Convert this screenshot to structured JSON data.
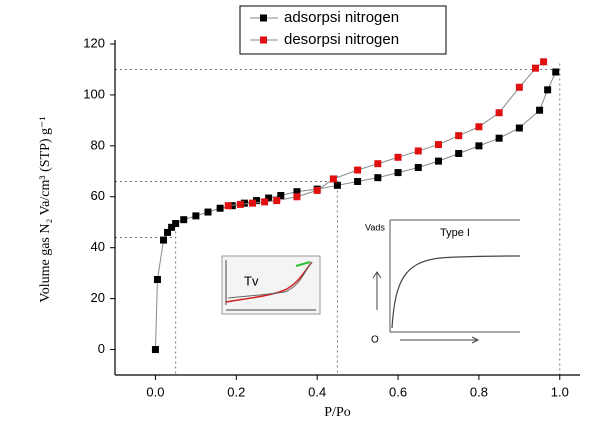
{
  "chart_data": {
    "type": "scatter-line",
    "x_label": "P/Po",
    "y_label": "Volume gas N₂ Va/cm³ (STP) g⁻¹",
    "xlim": [
      -0.1,
      1.05
    ],
    "ylim": [
      -10,
      120
    ],
    "xticks": [
      {
        "value": 0,
        "label": "0.0"
      },
      0.2,
      0.4,
      0.6,
      0.8,
      {
        "value": 1,
        "label": "1.0"
      }
    ],
    "yticks": [
      0,
      20,
      40,
      60,
      80,
      100,
      120
    ],
    "legend": "top",
    "series": [
      {
        "name": "adsorpsi nitrogen",
        "color": "#000000",
        "x": [
          0.0,
          0.005,
          0.02,
          0.03,
          0.04,
          0.05,
          0.07,
          0.1,
          0.13,
          0.16,
          0.19,
          0.22,
          0.25,
          0.28,
          0.31,
          0.35,
          0.4,
          0.45,
          0.5,
          0.55,
          0.6,
          0.65,
          0.7,
          0.75,
          0.8,
          0.85,
          0.9,
          0.95,
          0.97,
          0.99
        ],
        "values": [
          0,
          27.5,
          43,
          46,
          48,
          49.5,
          51,
          52.5,
          54,
          55.5,
          56.5,
          57.5,
          58.5,
          59.5,
          60.5,
          62,
          63,
          64.5,
          66,
          67.5,
          69.5,
          71.5,
          74,
          77,
          80,
          83,
          87,
          94,
          102,
          109
        ]
      },
      {
        "name": "desorpsi nitrogen",
        "color": "#e01010",
        "x": [
          0.96,
          0.94,
          0.9,
          0.85,
          0.8,
          0.75,
          0.7,
          0.65,
          0.6,
          0.55,
          0.5,
          0.44,
          0.4,
          0.35,
          0.3,
          0.27,
          0.24,
          0.21,
          0.18
        ],
        "values": [
          113,
          110.5,
          103,
          93,
          87.5,
          84,
          80.5,
          78,
          75.5,
          73,
          70.5,
          67,
          62.5,
          60,
          58.5,
          58,
          57.5,
          57,
          56.5
        ]
      }
    ],
    "guides": [
      {
        "x": 0.05,
        "y": 44
      },
      {
        "x": 0.45,
        "y": 66
      },
      {
        "x": 1.0,
        "y": 110
      }
    ],
    "insets": [
      {
        "label": "Tv"
      },
      {
        "label": "Type I",
        "y_label": "Vads",
        "origin": "O"
      }
    ]
  }
}
